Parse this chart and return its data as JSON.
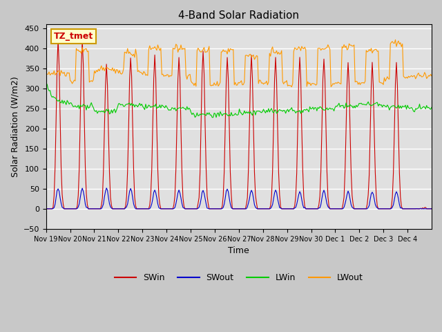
{
  "title": "4-Band Solar Radiation",
  "xlabel": "Time",
  "ylabel": "Solar Radiation (W/m2)",
  "ylim": [
    -50,
    460
  ],
  "yticks": [
    -50,
    0,
    50,
    100,
    150,
    200,
    250,
    300,
    350,
    400,
    450
  ],
  "xtick_labels": [
    "Nov 19",
    "Nov 20",
    "Nov 21",
    "Nov 22",
    "Nov 23",
    "Nov 24",
    "Nov 25",
    "Nov 26",
    "Nov 27",
    "Nov 28",
    "Nov 29",
    "Nov 30",
    "Dec 1",
    "Dec 2",
    "Dec 3",
    "Dec 4"
  ],
  "colors": {
    "SWin": "#cc0000",
    "SWout": "#0000cc",
    "LWin": "#00cc00",
    "LWout": "#ff9900"
  },
  "annotation_text": "TZ_tmet",
  "annotation_color": "#cc0000",
  "annotation_bg": "#ffffcc",
  "annotation_border": "#cc9900",
  "plot_bg": "#e0e0e0",
  "grid_color": "#ffffff",
  "n_days": 16,
  "SWin_peak": [
    420,
    420,
    360,
    380,
    380,
    380,
    395,
    380,
    380,
    380,
    375,
    375,
    365,
    360,
    360,
    0
  ],
  "SWout_peak": [
    60,
    60,
    60,
    60,
    55,
    55,
    55,
    60,
    55,
    55,
    50,
    55,
    50,
    50,
    50,
    0
  ],
  "LWout_base_day": [
    340,
    395,
    350,
    390,
    400,
    400,
    395,
    395,
    380,
    390,
    400,
    400,
    405,
    395,
    410,
    330
  ],
  "LWin_base_day": [
    260,
    255,
    245,
    260,
    255,
    250,
    235,
    235,
    240,
    245,
    245,
    250,
    255,
    260,
    255,
    250
  ],
  "LWin_start": [
    310,
    260,
    240,
    260,
    255,
    250,
    235,
    235,
    240,
    245,
    245,
    250,
    255,
    260,
    255,
    250
  ],
  "LWout_night": [
    335,
    320,
    345,
    340,
    335,
    330,
    310,
    310,
    315,
    315,
    310,
    310,
    315,
    315,
    325,
    330
  ]
}
